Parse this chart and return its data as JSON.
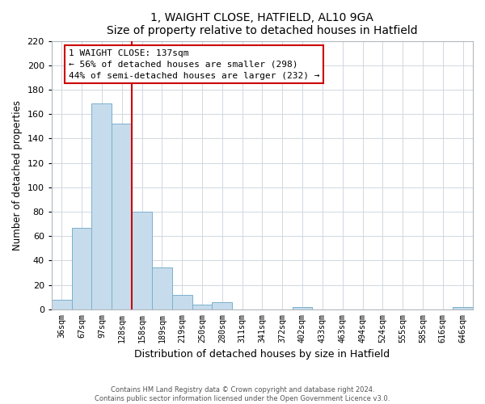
{
  "title": "1, WAIGHT CLOSE, HATFIELD, AL10 9GA",
  "subtitle": "Size of property relative to detached houses in Hatfield",
  "xlabel": "Distribution of detached houses by size in Hatfield",
  "ylabel": "Number of detached properties",
  "bar_labels": [
    "36sqm",
    "67sqm",
    "97sqm",
    "128sqm",
    "158sqm",
    "189sqm",
    "219sqm",
    "250sqm",
    "280sqm",
    "311sqm",
    "341sqm",
    "372sqm",
    "402sqm",
    "433sqm",
    "463sqm",
    "494sqm",
    "524sqm",
    "555sqm",
    "585sqm",
    "616sqm",
    "646sqm"
  ],
  "bar_values": [
    8,
    67,
    169,
    152,
    80,
    34,
    12,
    4,
    6,
    0,
    0,
    0,
    2,
    0,
    0,
    0,
    0,
    0,
    0,
    0,
    2
  ],
  "bar_color": "#c6dcec",
  "bar_edge_color": "#7ab0cc",
  "vline_index": 3,
  "vline_color": "#cc0000",
  "ylim": [
    0,
    220
  ],
  "yticks": [
    0,
    20,
    40,
    60,
    80,
    100,
    120,
    140,
    160,
    180,
    200,
    220
  ],
  "annotation_title": "1 WAIGHT CLOSE: 137sqm",
  "annotation_line1": "← 56% of detached houses are smaller (298)",
  "annotation_line2": "44% of semi-detached houses are larger (232) →",
  "footer1": "Contains HM Land Registry data © Crown copyright and database right 2024.",
  "footer2": "Contains public sector information licensed under the Open Government Licence v3.0."
}
